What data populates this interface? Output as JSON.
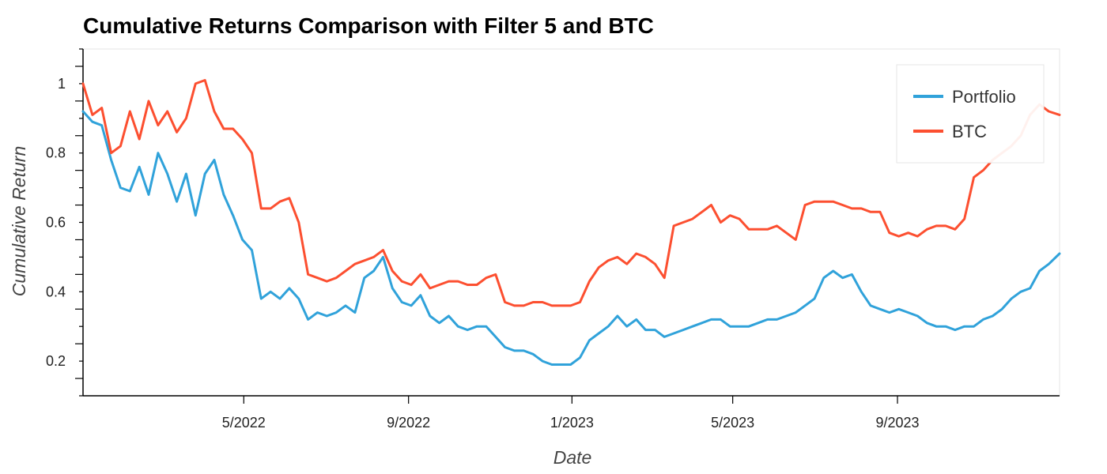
{
  "chart_data": {
    "type": "line",
    "title": "Cumulative Returns Comparison with Filter 5 and BTC",
    "xlabel": "Date",
    "ylabel": "Cumulative Return",
    "xlim": [
      "2022-01-01",
      "2023-12-31"
    ],
    "ylim": [
      0.1,
      1.1
    ],
    "y_ticks": [
      0.2,
      0.4,
      0.6,
      0.8,
      1
    ],
    "y_tick_labels": [
      "0.2",
      "0.4",
      "0.6",
      "0.8",
      "1"
    ],
    "x_ticks": [
      "2022-05-01",
      "2022-09-01",
      "2023-01-01",
      "2023-05-01",
      "2023-09-01"
    ],
    "x_tick_labels": [
      "5/2022",
      "9/2022",
      "1/2023",
      "5/2023",
      "9/2023"
    ],
    "grid": false,
    "legend_position": "top-right",
    "series": [
      {
        "name": "Portfolio",
        "color": "#30a2da",
        "points": [
          [
            "2022-01-01",
            0.92
          ],
          [
            "2022-01-08",
            0.89
          ],
          [
            "2022-01-15",
            0.88
          ],
          [
            "2022-01-22",
            0.78
          ],
          [
            "2022-01-29",
            0.7
          ],
          [
            "2022-02-05",
            0.69
          ],
          [
            "2022-02-12",
            0.76
          ],
          [
            "2022-02-19",
            0.68
          ],
          [
            "2022-02-26",
            0.8
          ],
          [
            "2022-03-05",
            0.74
          ],
          [
            "2022-03-12",
            0.66
          ],
          [
            "2022-03-19",
            0.74
          ],
          [
            "2022-03-26",
            0.62
          ],
          [
            "2022-04-02",
            0.74
          ],
          [
            "2022-04-09",
            0.78
          ],
          [
            "2022-04-16",
            0.68
          ],
          [
            "2022-04-23",
            0.62
          ],
          [
            "2022-04-30",
            0.55
          ],
          [
            "2022-05-07",
            0.52
          ],
          [
            "2022-05-14",
            0.38
          ],
          [
            "2022-05-21",
            0.4
          ],
          [
            "2022-05-28",
            0.38
          ],
          [
            "2022-06-04",
            0.41
          ],
          [
            "2022-06-11",
            0.38
          ],
          [
            "2022-06-18",
            0.32
          ],
          [
            "2022-06-25",
            0.34
          ],
          [
            "2022-07-02",
            0.33
          ],
          [
            "2022-07-09",
            0.34
          ],
          [
            "2022-07-16",
            0.36
          ],
          [
            "2022-07-23",
            0.34
          ],
          [
            "2022-07-30",
            0.44
          ],
          [
            "2022-08-06",
            0.46
          ],
          [
            "2022-08-13",
            0.5
          ],
          [
            "2022-08-20",
            0.41
          ],
          [
            "2022-08-27",
            0.37
          ],
          [
            "2022-09-03",
            0.36
          ],
          [
            "2022-09-10",
            0.39
          ],
          [
            "2022-09-17",
            0.33
          ],
          [
            "2022-09-24",
            0.31
          ],
          [
            "2022-10-01",
            0.33
          ],
          [
            "2022-10-08",
            0.3
          ],
          [
            "2022-10-15",
            0.29
          ],
          [
            "2022-10-22",
            0.3
          ],
          [
            "2022-10-29",
            0.3
          ],
          [
            "2022-11-05",
            0.27
          ],
          [
            "2022-11-12",
            0.24
          ],
          [
            "2022-11-19",
            0.23
          ],
          [
            "2022-11-26",
            0.23
          ],
          [
            "2022-12-03",
            0.22
          ],
          [
            "2022-12-10",
            0.2
          ],
          [
            "2022-12-17",
            0.19
          ],
          [
            "2022-12-24",
            0.19
          ],
          [
            "2022-12-31",
            0.19
          ],
          [
            "2023-01-07",
            0.21
          ],
          [
            "2023-01-14",
            0.26
          ],
          [
            "2023-01-21",
            0.28
          ],
          [
            "2023-01-28",
            0.3
          ],
          [
            "2023-02-04",
            0.33
          ],
          [
            "2023-02-11",
            0.3
          ],
          [
            "2023-02-18",
            0.32
          ],
          [
            "2023-02-25",
            0.29
          ],
          [
            "2023-03-04",
            0.29
          ],
          [
            "2023-03-11",
            0.27
          ],
          [
            "2023-03-18",
            0.28
          ],
          [
            "2023-03-25",
            0.29
          ],
          [
            "2023-04-01",
            0.3
          ],
          [
            "2023-04-08",
            0.31
          ],
          [
            "2023-04-15",
            0.32
          ],
          [
            "2023-04-22",
            0.32
          ],
          [
            "2023-04-29",
            0.3
          ],
          [
            "2023-05-06",
            0.3
          ],
          [
            "2023-05-13",
            0.3
          ],
          [
            "2023-05-20",
            0.31
          ],
          [
            "2023-05-27",
            0.32
          ],
          [
            "2023-06-03",
            0.32
          ],
          [
            "2023-06-10",
            0.33
          ],
          [
            "2023-06-17",
            0.34
          ],
          [
            "2023-06-24",
            0.36
          ],
          [
            "2023-07-01",
            0.38
          ],
          [
            "2023-07-08",
            0.44
          ],
          [
            "2023-07-15",
            0.46
          ],
          [
            "2023-07-22",
            0.44
          ],
          [
            "2023-07-29",
            0.45
          ],
          [
            "2023-08-05",
            0.4
          ],
          [
            "2023-08-12",
            0.36
          ],
          [
            "2023-08-19",
            0.35
          ],
          [
            "2023-08-26",
            0.34
          ],
          [
            "2023-09-02",
            0.35
          ],
          [
            "2023-09-09",
            0.34
          ],
          [
            "2023-09-16",
            0.33
          ],
          [
            "2023-09-23",
            0.31
          ],
          [
            "2023-09-30",
            0.3
          ],
          [
            "2023-10-07",
            0.3
          ],
          [
            "2023-10-14",
            0.29
          ],
          [
            "2023-10-21",
            0.3
          ],
          [
            "2023-10-28",
            0.3
          ],
          [
            "2023-11-04",
            0.32
          ],
          [
            "2023-11-11",
            0.33
          ],
          [
            "2023-11-18",
            0.35
          ],
          [
            "2023-11-25",
            0.38
          ],
          [
            "2023-12-02",
            0.4
          ],
          [
            "2023-12-09",
            0.41
          ],
          [
            "2023-12-16",
            0.46
          ],
          [
            "2023-12-23",
            0.48
          ],
          [
            "2023-12-31",
            0.51
          ]
        ]
      },
      {
        "name": "BTC",
        "color": "#fc4f30",
        "points": [
          [
            "2022-01-01",
            1.0
          ],
          [
            "2022-01-08",
            0.91
          ],
          [
            "2022-01-15",
            0.93
          ],
          [
            "2022-01-22",
            0.8
          ],
          [
            "2022-01-29",
            0.82
          ],
          [
            "2022-02-05",
            0.92
          ],
          [
            "2022-02-12",
            0.84
          ],
          [
            "2022-02-19",
            0.95
          ],
          [
            "2022-02-26",
            0.88
          ],
          [
            "2022-03-05",
            0.92
          ],
          [
            "2022-03-12",
            0.86
          ],
          [
            "2022-03-19",
            0.9
          ],
          [
            "2022-03-26",
            1.0
          ],
          [
            "2022-04-02",
            1.01
          ],
          [
            "2022-04-09",
            0.92
          ],
          [
            "2022-04-16",
            0.87
          ],
          [
            "2022-04-23",
            0.87
          ],
          [
            "2022-04-30",
            0.84
          ],
          [
            "2022-05-07",
            0.8
          ],
          [
            "2022-05-14",
            0.64
          ],
          [
            "2022-05-21",
            0.64
          ],
          [
            "2022-05-28",
            0.66
          ],
          [
            "2022-06-04",
            0.67
          ],
          [
            "2022-06-11",
            0.6
          ],
          [
            "2022-06-18",
            0.45
          ],
          [
            "2022-06-25",
            0.44
          ],
          [
            "2022-07-02",
            0.43
          ],
          [
            "2022-07-09",
            0.44
          ],
          [
            "2022-07-16",
            0.46
          ],
          [
            "2022-07-23",
            0.48
          ],
          [
            "2022-07-30",
            0.49
          ],
          [
            "2022-08-06",
            0.5
          ],
          [
            "2022-08-13",
            0.52
          ],
          [
            "2022-08-20",
            0.46
          ],
          [
            "2022-08-27",
            0.43
          ],
          [
            "2022-09-03",
            0.42
          ],
          [
            "2022-09-10",
            0.45
          ],
          [
            "2022-09-17",
            0.41
          ],
          [
            "2022-09-24",
            0.42
          ],
          [
            "2022-10-01",
            0.43
          ],
          [
            "2022-10-08",
            0.43
          ],
          [
            "2022-10-15",
            0.42
          ],
          [
            "2022-10-22",
            0.42
          ],
          [
            "2022-10-29",
            0.44
          ],
          [
            "2022-11-05",
            0.45
          ],
          [
            "2022-11-12",
            0.37
          ],
          [
            "2022-11-19",
            0.36
          ],
          [
            "2022-11-26",
            0.36
          ],
          [
            "2022-12-03",
            0.37
          ],
          [
            "2022-12-10",
            0.37
          ],
          [
            "2022-12-17",
            0.36
          ],
          [
            "2022-12-24",
            0.36
          ],
          [
            "2022-12-31",
            0.36
          ],
          [
            "2023-01-07",
            0.37
          ],
          [
            "2023-01-14",
            0.43
          ],
          [
            "2023-01-21",
            0.47
          ],
          [
            "2023-01-28",
            0.49
          ],
          [
            "2023-02-04",
            0.5
          ],
          [
            "2023-02-11",
            0.48
          ],
          [
            "2023-02-18",
            0.51
          ],
          [
            "2023-02-25",
            0.5
          ],
          [
            "2023-03-04",
            0.48
          ],
          [
            "2023-03-11",
            0.44
          ],
          [
            "2023-03-18",
            0.59
          ],
          [
            "2023-03-25",
            0.6
          ],
          [
            "2023-04-01",
            0.61
          ],
          [
            "2023-04-08",
            0.63
          ],
          [
            "2023-04-15",
            0.65
          ],
          [
            "2023-04-22",
            0.6
          ],
          [
            "2023-04-29",
            0.62
          ],
          [
            "2023-05-06",
            0.61
          ],
          [
            "2023-05-13",
            0.58
          ],
          [
            "2023-05-20",
            0.58
          ],
          [
            "2023-05-27",
            0.58
          ],
          [
            "2023-06-03",
            0.59
          ],
          [
            "2023-06-10",
            0.57
          ],
          [
            "2023-06-17",
            0.55
          ],
          [
            "2023-06-24",
            0.65
          ],
          [
            "2023-07-01",
            0.66
          ],
          [
            "2023-07-08",
            0.66
          ],
          [
            "2023-07-15",
            0.66
          ],
          [
            "2023-07-22",
            0.65
          ],
          [
            "2023-07-29",
            0.64
          ],
          [
            "2023-08-05",
            0.64
          ],
          [
            "2023-08-12",
            0.63
          ],
          [
            "2023-08-19",
            0.63
          ],
          [
            "2023-08-26",
            0.57
          ],
          [
            "2023-09-02",
            0.56
          ],
          [
            "2023-09-09",
            0.57
          ],
          [
            "2023-09-16",
            0.56
          ],
          [
            "2023-09-23",
            0.58
          ],
          [
            "2023-09-30",
            0.59
          ],
          [
            "2023-10-07",
            0.59
          ],
          [
            "2023-10-14",
            0.58
          ],
          [
            "2023-10-21",
            0.61
          ],
          [
            "2023-10-28",
            0.73
          ],
          [
            "2023-11-04",
            0.75
          ],
          [
            "2023-11-11",
            0.78
          ],
          [
            "2023-11-18",
            0.8
          ],
          [
            "2023-11-25",
            0.82
          ],
          [
            "2023-12-02",
            0.85
          ],
          [
            "2023-12-09",
            0.91
          ],
          [
            "2023-12-16",
            0.94
          ],
          [
            "2023-12-23",
            0.92
          ],
          [
            "2023-12-31",
            0.91
          ]
        ]
      }
    ]
  }
}
